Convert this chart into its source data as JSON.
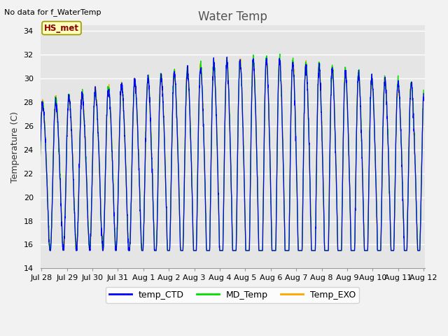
{
  "title": "Water Temp",
  "ylabel": "Temperature (C)",
  "xlabel": "",
  "ylim": [
    14,
    34.5
  ],
  "yticks": [
    14,
    16,
    18,
    20,
    22,
    24,
    26,
    28,
    30,
    32,
    34
  ],
  "annotation_text": "No data for f_WaterTemp",
  "box_label": "HS_met",
  "legend_labels": [
    "temp_CTD",
    "MD_Temp",
    "Temp_EXO"
  ],
  "line_colors": [
    "blue",
    "#00dd00",
    "orange"
  ],
  "background_color": "#e5e5e5",
  "xtick_labels": [
    "Jul 28",
    "Jul 29",
    "Jul 30",
    "Jul 31",
    "Aug 1",
    "Aug 2",
    "Aug 3",
    "Aug 4",
    "Aug 5",
    "Aug 6",
    "Aug 7",
    "Aug 8",
    "Aug 9",
    "Aug 10",
    "Aug 11",
    "Aug 12"
  ],
  "title_fontsize": 12,
  "axis_fontsize": 9,
  "tick_fontsize": 8,
  "fig_facecolor": "#f2f2f2"
}
